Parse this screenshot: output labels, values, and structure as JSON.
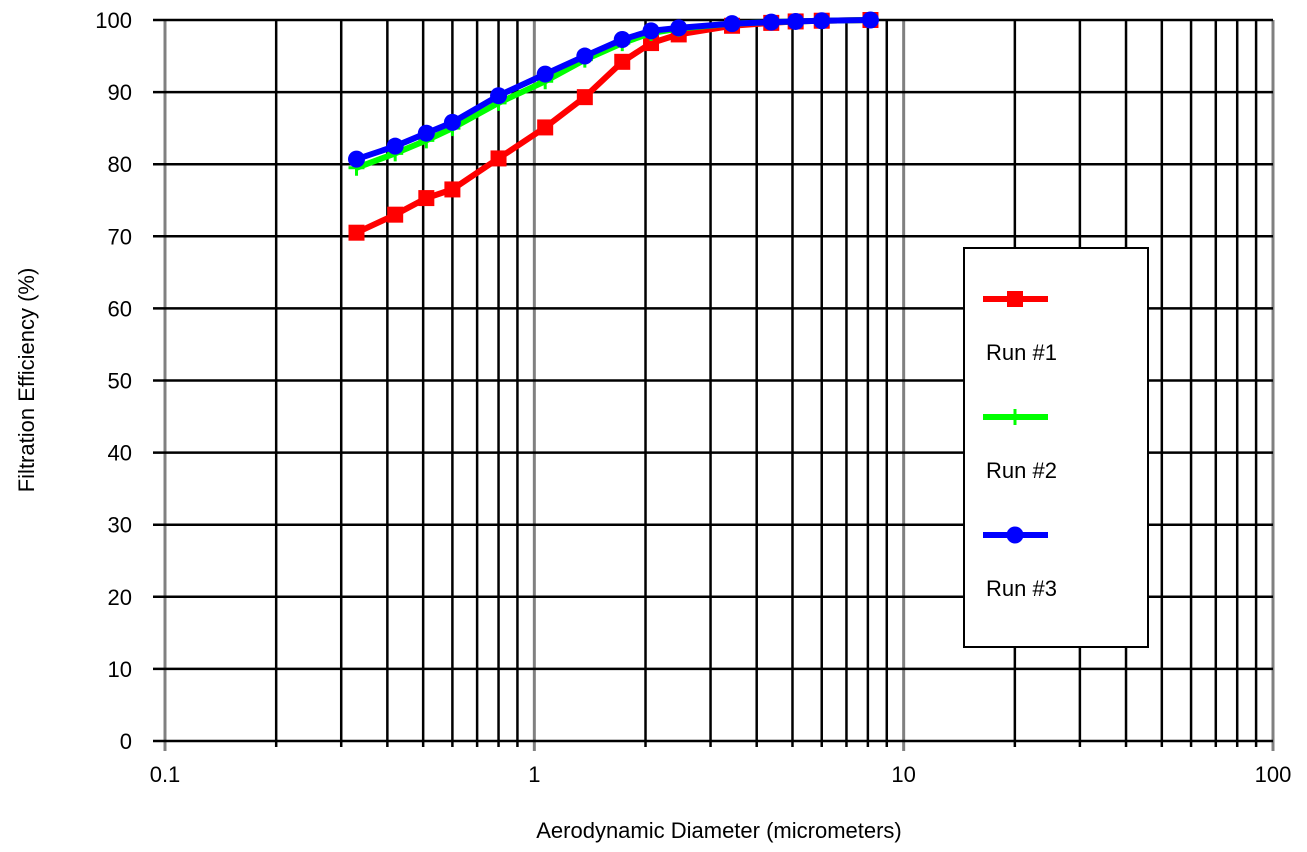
{
  "chart_data": {
    "type": "line",
    "xscale": "log",
    "xlim": [
      0.1,
      100
    ],
    "ylim": [
      0,
      100
    ],
    "grid": true,
    "xlabel": "Aerodynamic Diameter (micrometers)",
    "ylabel": "Filtration Efficiency (%)",
    "xticks": [
      "0.1",
      "1",
      "10",
      "100"
    ],
    "yticks": [
      "0",
      "10",
      "20",
      "30",
      "40",
      "50",
      "60",
      "70",
      "80",
      "90",
      "100"
    ],
    "legend_position": "right",
    "series": [
      {
        "name": "Run #1",
        "color": "#ff0000",
        "marker": "square",
        "x": [
          0.33,
          0.42,
          0.51,
          0.6,
          0.8,
          1.07,
          1.37,
          1.73,
          2.07,
          2.46,
          3.43,
          4.38,
          5.1,
          6.0,
          8.13
        ],
        "y": [
          70.5,
          73.0,
          75.3,
          76.5,
          80.8,
          85.1,
          89.3,
          94.2,
          96.8,
          98.0,
          99.2,
          99.6,
          99.8,
          99.9,
          100.0
        ]
      },
      {
        "name": "Run #2",
        "color": "#00ff00",
        "marker": "plus",
        "x": [
          0.33,
          0.42,
          0.51,
          0.6,
          0.8,
          1.07,
          1.37,
          1.73,
          2.07,
          2.46,
          3.43,
          4.38,
          5.1,
          6.0,
          8.13
        ],
        "y": [
          79.5,
          81.5,
          83.3,
          85.0,
          88.5,
          91.5,
          94.5,
          96.8,
          98.2,
          98.8,
          99.5,
          99.7,
          99.8,
          99.9,
          100.0
        ]
      },
      {
        "name": "Run #3",
        "color": "#0000ff",
        "marker": "circle",
        "x": [
          0.33,
          0.42,
          0.51,
          0.6,
          0.8,
          1.07,
          1.37,
          1.73,
          2.07,
          2.46,
          3.43,
          4.38,
          5.1,
          6.0,
          8.13
        ],
        "y": [
          80.7,
          82.5,
          84.3,
          85.8,
          89.5,
          92.5,
          95.0,
          97.3,
          98.5,
          98.9,
          99.5,
          99.7,
          99.8,
          99.9,
          100.0
        ]
      }
    ]
  }
}
